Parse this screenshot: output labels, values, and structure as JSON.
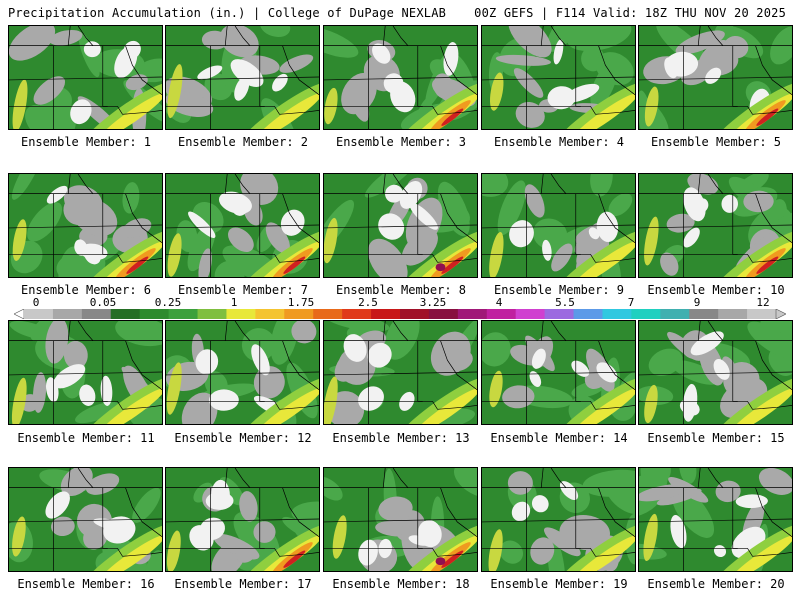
{
  "header": {
    "left": "Precipitation Accumulation (in.) | College of DuPage NEXLAB",
    "right": "00Z GEFS | F114 Valid: 18Z THU NOV 20 2025"
  },
  "panels": [
    {
      "caption": "Ensemble Member: 1"
    },
    {
      "caption": "Ensemble Member: 2"
    },
    {
      "caption": "Ensemble Member: 3"
    },
    {
      "caption": "Ensemble Member: 4"
    },
    {
      "caption": "Ensemble Member: 5"
    },
    {
      "caption": "Ensemble Member: 6"
    },
    {
      "caption": "Ensemble Member: 7"
    },
    {
      "caption": "Ensemble Member: 8"
    },
    {
      "caption": "Ensemble Member: 9"
    },
    {
      "caption": "Ensemble Member: 10"
    },
    {
      "caption": "Ensemble Member: 11"
    },
    {
      "caption": "Ensemble Member: 12"
    },
    {
      "caption": "Ensemble Member: 13"
    },
    {
      "caption": "Ensemble Member: 14"
    },
    {
      "caption": "Ensemble Member: 15"
    },
    {
      "caption": "Ensemble Member: 16"
    },
    {
      "caption": "Ensemble Member: 17"
    },
    {
      "caption": "Ensemble Member: 18"
    },
    {
      "caption": "Ensemble Member: 19"
    },
    {
      "caption": "Ensemble Member: 20"
    }
  ],
  "colorbar": {
    "labels": [
      "0",
      "0.05",
      "0.25",
      "1",
      "1.75",
      "2.5",
      "3.25",
      "4",
      "5.5",
      "7",
      "9",
      "12"
    ],
    "colors": [
      "#c8c8c8",
      "#a8a8a8",
      "#888888",
      "#246e24",
      "#2e8b2e",
      "#3ca03c",
      "#7fbf3f",
      "#e8e83a",
      "#f4c430",
      "#f09a20",
      "#e86a1a",
      "#e03a1a",
      "#c81818",
      "#a01028",
      "#881040",
      "#a01878",
      "#c020a0",
      "#d040d0",
      "#9c6ae0",
      "#5c9ae8",
      "#30c8e0",
      "#20d0c0",
      "#40b0b0",
      "#888888",
      "#a8a8a8",
      "#c8c8c8"
    ]
  }
}
